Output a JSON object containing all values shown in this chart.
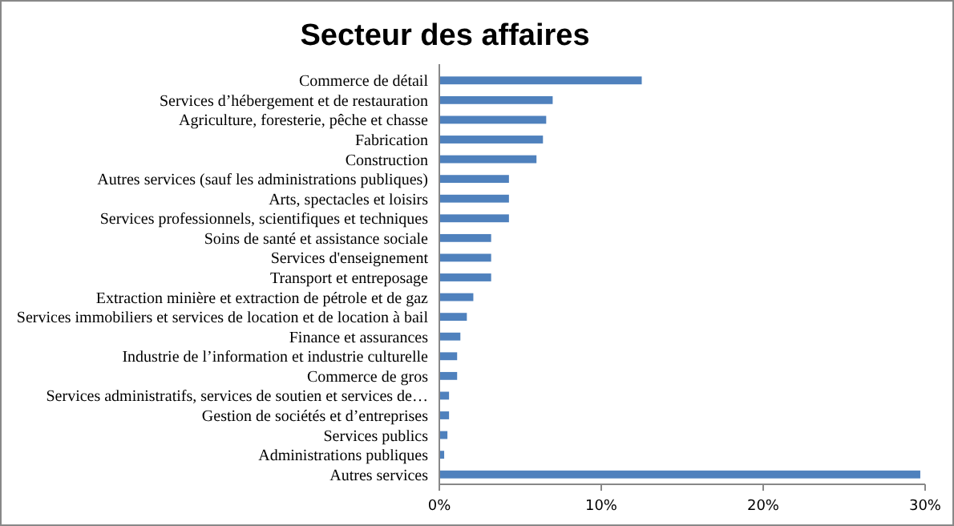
{
  "chart_data": {
    "type": "bar",
    "title": "Secteur des affaires",
    "orientation": "horizontal",
    "categories": [
      "Commerce de détail",
      "Services d’hébergement et de restauration",
      "Agriculture, foresterie, pêche et chasse",
      "Fabrication",
      "Construction",
      "Autres services (sauf les administrations publiques)",
      "Arts, spectacles et loisirs",
      "Services professionnels, scientifiques et techniques",
      "Soins de santé et assistance sociale",
      "Services d'enseignement",
      "Transport et entreposage",
      "Extraction minière et extraction de pétrole et de gaz",
      "Services immobiliers et services de location et de location à bail",
      "Finance et assurances",
      "Industrie de l’information et industrie culturelle",
      "Commerce de gros",
      "Services administratifs, services de soutien et services de…",
      "Gestion de sociétés et d’entreprises",
      "Services publics",
      "Administrations publiques",
      "Autres services"
    ],
    "values": [
      12.5,
      7.0,
      6.6,
      6.4,
      6.0,
      4.3,
      4.3,
      4.3,
      3.2,
      3.2,
      3.2,
      2.1,
      1.7,
      1.3,
      1.1,
      1.1,
      0.6,
      0.6,
      0.5,
      0.3,
      29.7
    ],
    "color": "#4f81bd",
    "xlim": [
      0,
      30
    ],
    "xticks": [
      {
        "value": 0,
        "label": "0%"
      },
      {
        "value": 10,
        "label": "10%"
      },
      {
        "value": 20,
        "label": "20%"
      },
      {
        "value": 30,
        "label": "30%"
      }
    ],
    "grid": false
  }
}
